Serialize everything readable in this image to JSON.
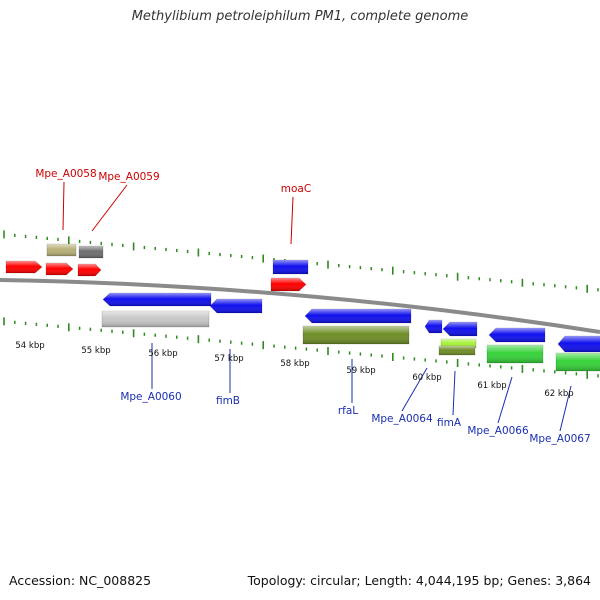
{
  "title": "Methylibium petroleiphilum PM1, complete genome",
  "footer": {
    "accession": "Accession: NC_008825",
    "summary": "Topology: circular; Length: 4,044,195 bp; Genes: 3,864"
  },
  "colors": {
    "background": "#ffffff",
    "backbone": "#8a8a8a",
    "tick": "#2e8b1e",
    "forward_label": "#cc0000",
    "reverse_label": "#1a2fb0",
    "red": "#ff0000",
    "blue": "#1010ee",
    "khaki": "#b8b078",
    "grey_dark": "#6e6e6e",
    "grey_light": "#c8c8c8",
    "olive": "#6f8e28",
    "green": "#36d23a",
    "lime": "#a8f23c"
  },
  "scale": {
    "unit": "kbp",
    "ticks": [
      "54 kbp",
      "55 kbp",
      "56 kbp",
      "57 kbp",
      "58 kbp",
      "59 kbp",
      "60 kbp",
      "61 kbp",
      "62 kbp"
    ]
  },
  "genes": [
    {
      "name": "Mpe_A0058",
      "strand": "forward",
      "color": "red",
      "label_color": "forward_label"
    },
    {
      "name": "Mpe_A0059",
      "strand": "forward",
      "color": "red",
      "label_color": "forward_label"
    },
    {
      "name": "moaC",
      "strand": "forward",
      "color": "red",
      "label_color": "forward_label"
    },
    {
      "name": "Mpe_A0060",
      "strand": "reverse",
      "color": "blue",
      "label_color": "reverse_label"
    },
    {
      "name": "fimB",
      "strand": "reverse",
      "color": "blue",
      "label_color": "reverse_label"
    },
    {
      "name": "rfaL",
      "strand": "reverse",
      "color": "blue",
      "label_color": "reverse_label"
    },
    {
      "name": "Mpe_A0064",
      "strand": "reverse",
      "color": "blue",
      "label_color": "reverse_label"
    },
    {
      "name": "fimA",
      "strand": "reverse",
      "color": "blue",
      "label_color": "reverse_label"
    },
    {
      "name": "Mpe_A0066",
      "strand": "reverse",
      "color": "blue",
      "label_color": "reverse_label"
    },
    {
      "name": "Mpe_A0067",
      "strand": "reverse",
      "color": "blue",
      "label_color": "reverse_label"
    }
  ]
}
